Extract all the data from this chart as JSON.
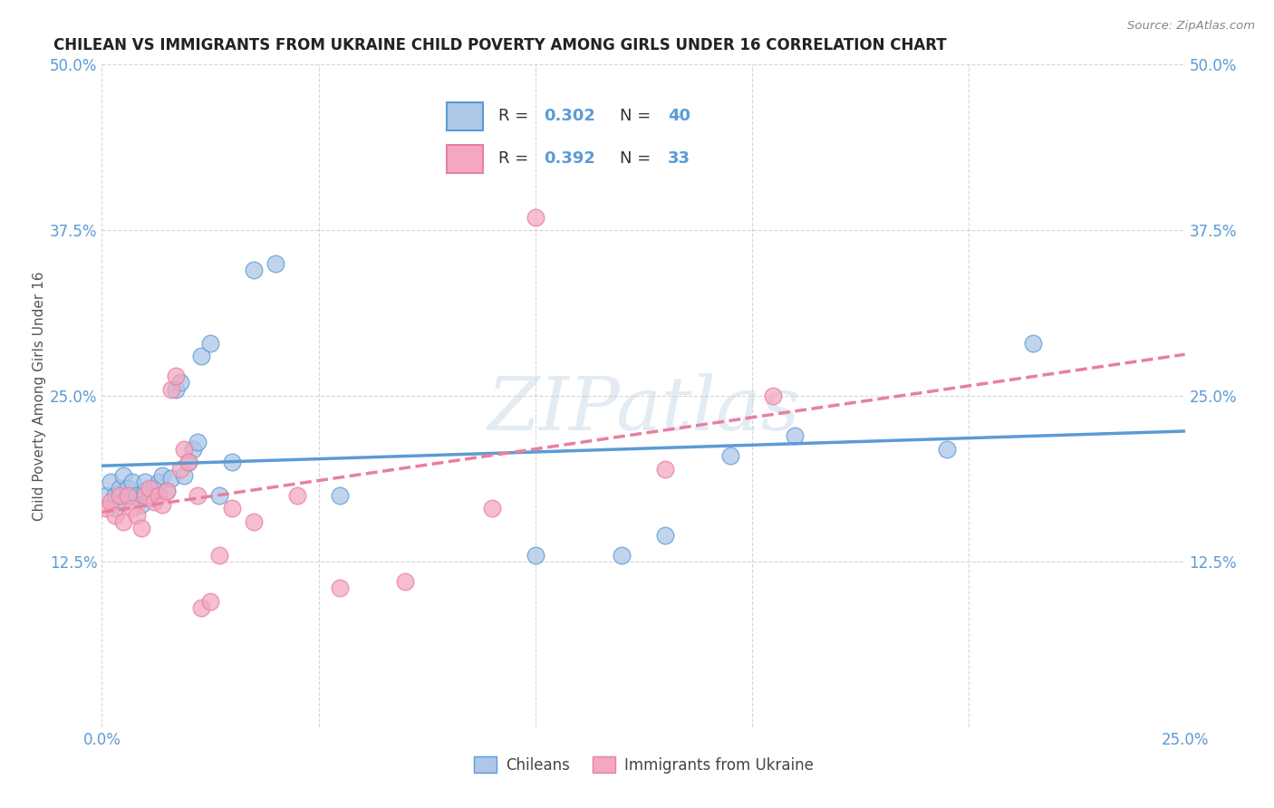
{
  "title": "CHILEAN VS IMMIGRANTS FROM UKRAINE CHILD POVERTY AMONG GIRLS UNDER 16 CORRELATION CHART",
  "source": "Source: ZipAtlas.com",
  "ylabel": "Child Poverty Among Girls Under 16",
  "xlim": [
    0.0,
    0.25
  ],
  "ylim": [
    0.0,
    0.5
  ],
  "xticks": [
    0.0,
    0.05,
    0.1,
    0.15,
    0.2,
    0.25
  ],
  "xticklabels": [
    "0.0%",
    "",
    "",
    "",
    "",
    "25.0%"
  ],
  "yticks": [
    0.0,
    0.125,
    0.25,
    0.375,
    0.5
  ],
  "yticklabels": [
    "",
    "12.5%",
    "25.0%",
    "37.5%",
    "50.0%"
  ],
  "chilean_color": "#aec6e8",
  "ukraine_color": "#f4a8c0",
  "chilean_edge_color": "#5b9bd5",
  "ukraine_edge_color": "#e87fa0",
  "chilean_R": 0.302,
  "chilean_N": 40,
  "ukraine_R": 0.392,
  "ukraine_N": 33,
  "chilean_line_color": "#5b9bd5",
  "ukraine_line_color": "#e87fa0",
  "watermark": "ZIPatlas",
  "background_color": "#ffffff",
  "grid_color": "#cccccc",
  "chilean_x": [
    0.001,
    0.002,
    0.003,
    0.003,
    0.004,
    0.005,
    0.005,
    0.006,
    0.007,
    0.007,
    0.008,
    0.009,
    0.01,
    0.01,
    0.011,
    0.012,
    0.013,
    0.014,
    0.015,
    0.016,
    0.017,
    0.018,
    0.019,
    0.02,
    0.021,
    0.022,
    0.023,
    0.025,
    0.027,
    0.03,
    0.035,
    0.04,
    0.055,
    0.1,
    0.12,
    0.13,
    0.145,
    0.16,
    0.195,
    0.215
  ],
  "chilean_y": [
    0.175,
    0.185,
    0.175,
    0.165,
    0.18,
    0.17,
    0.19,
    0.18,
    0.175,
    0.185,
    0.175,
    0.168,
    0.178,
    0.185,
    0.173,
    0.18,
    0.185,
    0.19,
    0.178,
    0.188,
    0.255,
    0.26,
    0.19,
    0.2,
    0.21,
    0.215,
    0.28,
    0.29,
    0.175,
    0.2,
    0.345,
    0.35,
    0.175,
    0.13,
    0.13,
    0.145,
    0.205,
    0.22,
    0.21,
    0.29
  ],
  "ukraine_x": [
    0.001,
    0.002,
    0.003,
    0.004,
    0.005,
    0.006,
    0.007,
    0.008,
    0.009,
    0.01,
    0.011,
    0.012,
    0.013,
    0.014,
    0.015,
    0.016,
    0.017,
    0.018,
    0.019,
    0.02,
    0.022,
    0.023,
    0.025,
    0.027,
    0.03,
    0.035,
    0.045,
    0.055,
    0.07,
    0.09,
    0.1,
    0.13,
    0.155
  ],
  "ukraine_y": [
    0.165,
    0.17,
    0.16,
    0.175,
    0.155,
    0.175,
    0.165,
    0.16,
    0.15,
    0.175,
    0.18,
    0.17,
    0.175,
    0.168,
    0.178,
    0.255,
    0.265,
    0.195,
    0.21,
    0.2,
    0.175,
    0.09,
    0.095,
    0.13,
    0.165,
    0.155,
    0.175,
    0.105,
    0.11,
    0.165,
    0.385,
    0.195,
    0.25
  ]
}
